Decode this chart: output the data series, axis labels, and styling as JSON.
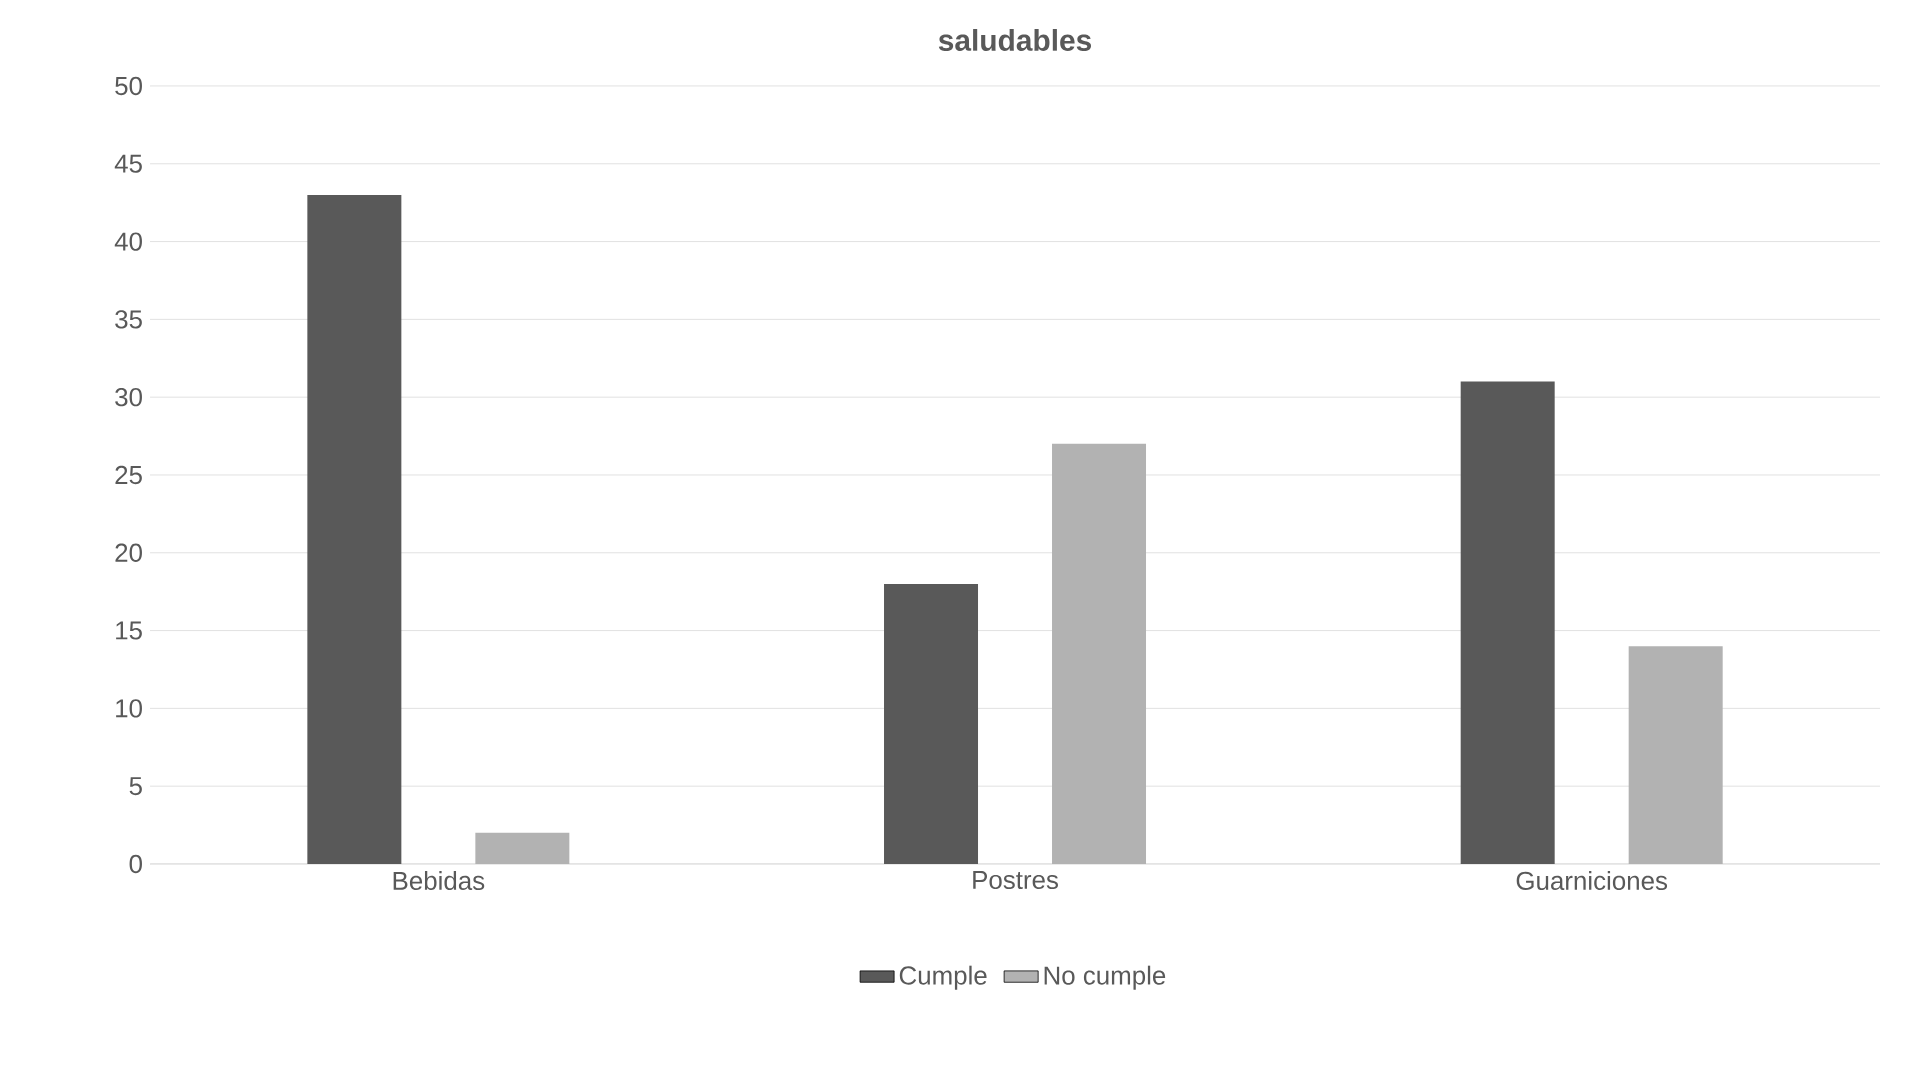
{
  "chart_data": {
    "type": "bar",
    "title": "saludables",
    "categories": [
      "Bebidas",
      "Postres",
      "Guarniciones"
    ],
    "series": [
      {
        "name": "Cumple",
        "color": "#595959",
        "values": [
          43,
          18,
          31
        ]
      },
      {
        "name": "No cumple",
        "color": "#b2b2b2",
        "values": [
          2,
          27,
          14
        ]
      }
    ],
    "ylim": [
      0,
      50
    ],
    "yticks": [
      0,
      5,
      10,
      15,
      20,
      25,
      30,
      35,
      40,
      45,
      50
    ],
    "grid": "y",
    "legend": "bottom"
  }
}
